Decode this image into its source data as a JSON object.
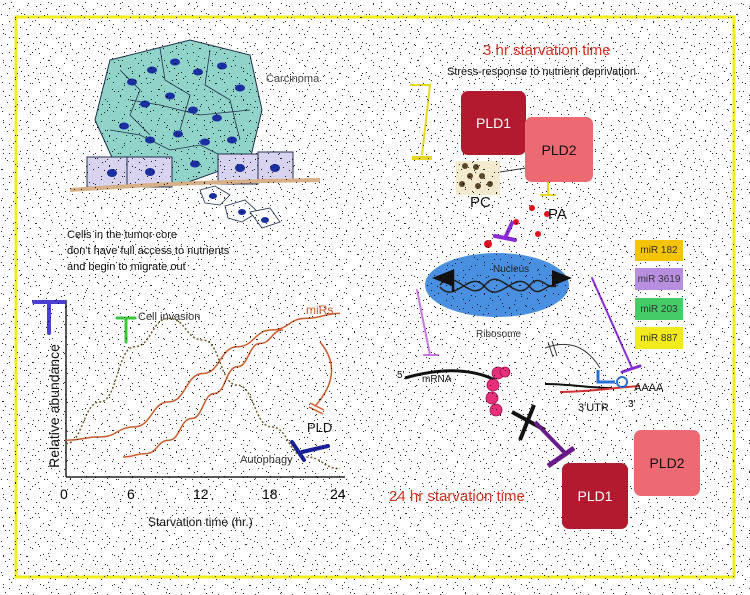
{
  "left_panel": {
    "carcinoma_label": "Carcinoma",
    "caption_lines": [
      "Cells in the tumor core",
      "don't have full access to nutrients",
      "and begin to migrate out"
    ]
  },
  "chart_data": {
    "type": "line",
    "xlabel": "Starvation time (hr.)",
    "ylabel": "Relative abundance",
    "x_ticks": [
      "0",
      "6",
      "12",
      "18",
      "24"
    ],
    "xlim": [
      0,
      24
    ],
    "series": [
      {
        "name": "Cell invasion",
        "color": "#6b5a2a",
        "style": "dotted",
        "x": [
          0,
          3,
          6,
          9,
          12,
          15,
          18,
          21,
          24
        ],
        "y": [
          0.2,
          0.45,
          0.78,
          0.95,
          0.82,
          0.55,
          0.3,
          0.12,
          0.05
        ]
      },
      {
        "name": "miRs",
        "color": "#cc5a2a",
        "style": "solid",
        "x": [
          0,
          3,
          6,
          9,
          12,
          15,
          18,
          21,
          24
        ],
        "y": [
          0.22,
          0.24,
          0.3,
          0.45,
          0.62,
          0.78,
          0.88,
          0.95,
          0.98
        ]
      },
      {
        "name": "Autophagy",
        "color": "#cc5a2a",
        "style": "solid",
        "x": [
          5,
          7,
          9,
          11,
          13,
          15,
          17,
          19
        ],
        "y": [
          0.12,
          0.14,
          0.22,
          0.35,
          0.5,
          0.66,
          0.8,
          0.88
        ]
      }
    ],
    "annotations": [
      "Cell invasion",
      "miRs",
      "PLD",
      "Autophagy"
    ]
  },
  "right_panel": {
    "title_3hr": "3 hr starvation time",
    "subtitle": "Stress-response to nutrient deprivation",
    "pld1": "PLD1",
    "pld2": "PLD2",
    "pc": "PC",
    "pa": "PA",
    "nucleus": "Nucleus",
    "ribosome": "Ribosome",
    "five_prime": "5'",
    "mrna": "mRNA",
    "three_utr": "3'UTR",
    "three_prime": "3'",
    "polya": "AAAA",
    "title_24hr": "24 hr starvation time",
    "pld1_b": "PLD1",
    "pld2_b": "PLD2",
    "mirs": [
      {
        "label": "miR 182",
        "color": "#f5c400"
      },
      {
        "label": "miR 3619",
        "color": "#b88ee0"
      },
      {
        "label": "miR 203",
        "color": "#46cc66"
      },
      {
        "label": "miR 887",
        "color": "#f0ea1e"
      }
    ]
  },
  "colors": {
    "frame": "#f2ec18",
    "pld1": "#b31a30",
    "pld2": "#ee6a72",
    "nucleus": "#4a90e2",
    "red_title": "#d83020"
  }
}
